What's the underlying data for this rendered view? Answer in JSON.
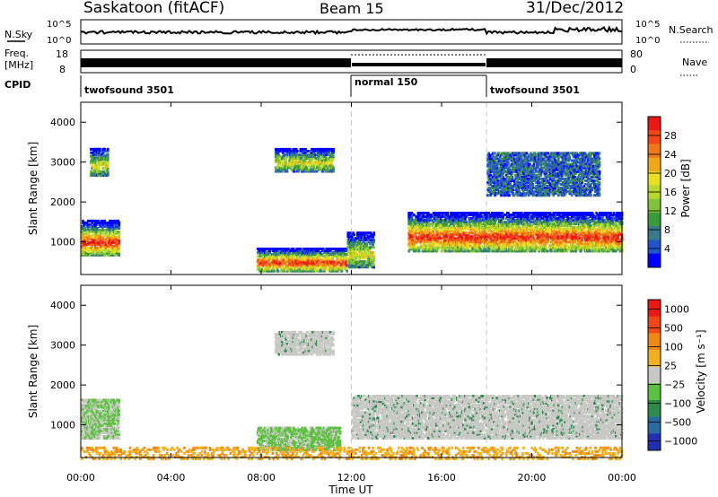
{
  "header": {
    "station": "Saskatoon (fitACF)",
    "beam": "Beam 15",
    "date": "31/Dec/2012"
  },
  "noise_panel": {
    "left_label": "N.Sky",
    "left_ticks": [
      "10^5",
      "10^0"
    ],
    "right_ticks": [
      "10^5",
      "10^0"
    ],
    "right_label": "N.Search"
  },
  "freq_panel": {
    "left_label_line1": "Freq.",
    "left_label_line2": "[MHz]",
    "left_ticks": [
      "18",
      "8"
    ],
    "right_ticks": [
      "80",
      "0"
    ],
    "right_label": "Nave"
  },
  "cpid_panel": {
    "label": "CPID",
    "segments": [
      {
        "name": "twofsound 3501",
        "start_hour": 0
      },
      {
        "name": "normal 150",
        "start_hour": 12
      },
      {
        "name": "twofsound 3501",
        "start_hour": 18
      }
    ]
  },
  "chart_data": [
    {
      "type": "heatmap",
      "ylabel": "Slant Range [km]",
      "xlabel": "",
      "xlim": [
        0,
        24
      ],
      "ylim": [
        180,
        4500
      ],
      "yticks": [
        "1000",
        "2000",
        "3000",
        "4000"
      ],
      "colorbar": {
        "label": "Power [dB]",
        "ticks": [
          "4",
          "8",
          "12",
          "16",
          "20",
          "24",
          "28"
        ],
        "colors": [
          "#0000ff",
          "#2255cc",
          "#3a7a8a",
          "#3c9a3c",
          "#7fc43a",
          "#b8d830",
          "#e8e020",
          "#f0a818",
          "#f07818",
          "#f04818",
          "#e81818"
        ]
      },
      "regions": [
        {
          "t0": 0.0,
          "t1": 1.7,
          "r0": 700,
          "r1": 1600,
          "level": "high"
        },
        {
          "t0": 0.4,
          "t1": 1.2,
          "r0": 2700,
          "r1": 3400,
          "level": "mid"
        },
        {
          "t0": 7.8,
          "t1": 11.8,
          "r0": 300,
          "r1": 900,
          "level": "high"
        },
        {
          "t0": 8.6,
          "t1": 11.2,
          "r0": 2800,
          "r1": 3400,
          "level": "mid"
        },
        {
          "t0": 11.8,
          "t1": 13.0,
          "r0": 400,
          "r1": 1300,
          "level": "mid"
        },
        {
          "t0": 14.5,
          "t1": 24.0,
          "r0": 800,
          "r1": 1800,
          "level": "high"
        },
        {
          "t0": 18.0,
          "t1": 23.0,
          "r0": 2200,
          "r1": 3300,
          "level": "low"
        }
      ]
    },
    {
      "type": "heatmap",
      "ylabel": "Slant Range [km]",
      "xlabel": "Time UT",
      "xlim": [
        0,
        24
      ],
      "ylim": [
        180,
        4500
      ],
      "xticks": [
        "00:00",
        "04:00",
        "08:00",
        "12:00",
        "16:00",
        "20:00",
        "00:00"
      ],
      "yticks": [
        "1000",
        "2000",
        "3000",
        "4000"
      ],
      "colorbar": {
        "label": "Velocity [m s⁻¹]",
        "ticks": [
          "1000",
          "500",
          "100",
          "25",
          "−25",
          "−100",
          "−500",
          "−1000"
        ],
        "colors": [
          "#2030b0",
          "#2a6aa0",
          "#2e8a4c",
          "#5ec040",
          "#c8c8c4",
          "#f0b020",
          "#f08818",
          "#f04818",
          "#e81818"
        ]
      },
      "regions": [
        {
          "t0": 0.0,
          "t1": 1.7,
          "r0": 700,
          "r1": 1700,
          "level": "grey-green"
        },
        {
          "t0": 7.8,
          "t1": 11.5,
          "r0": 400,
          "r1": 1000,
          "level": "green"
        },
        {
          "t0": 8.6,
          "t1": 11.2,
          "r0": 2800,
          "r1": 3400,
          "level": "grey"
        },
        {
          "t0": 12.0,
          "t1": 24.0,
          "r0": 700,
          "r1": 1800,
          "level": "grey"
        },
        {
          "t0": 0.0,
          "t1": 24.0,
          "r0": 180,
          "r1": 500,
          "level": "orange-dots"
        }
      ]
    }
  ],
  "colors": {
    "boundary_line": "#c8c8c8",
    "axis": "#000000"
  }
}
